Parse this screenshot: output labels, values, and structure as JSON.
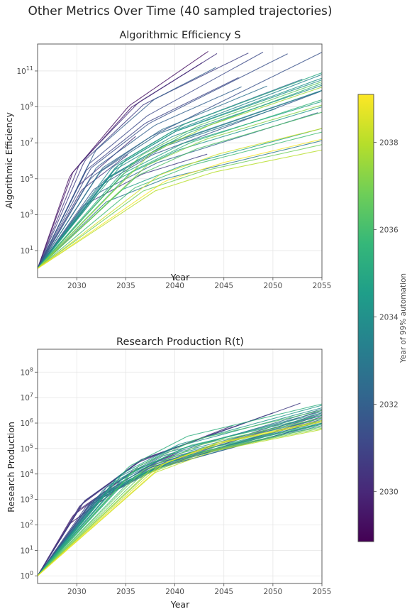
{
  "figure": {
    "title": "Other Metrics Over Time (40 sampled trajectories)"
  },
  "colorbar": {
    "label": "Year of 99% automation",
    "range": [
      2028.85,
      2039.1
    ],
    "ticks": [
      2030,
      2032,
      2034,
      2036,
      2038
    ],
    "colormap": [
      "#440154",
      "#482878",
      "#3e4989",
      "#31688e",
      "#26828e",
      "#1f9e89",
      "#35b779",
      "#6ece58",
      "#b5de2b",
      "#fde725"
    ]
  },
  "chart_data": [
    {
      "type": "line",
      "title": "Algorithmic Efficiency S",
      "xlabel": "Year",
      "ylabel": "Algorithmic Efficiency",
      "xlim": [
        2026,
        2055
      ],
      "ylim_log10": [
        -0.5,
        12.5
      ],
      "yscale": "log",
      "xticks": [
        2030,
        2035,
        2040,
        2045,
        2050,
        2055
      ],
      "yticks_exp": [
        1,
        3,
        5,
        7,
        9,
        11
      ],
      "grid": true,
      "start": {
        "x": 2026,
        "log10_y": 0
      },
      "series": [
        {
          "auto": 2029.3,
          "end": 2043.4,
          "m": [
            0.75,
            0.31,
            0.18
          ],
          "log10_end": 12.09
        },
        {
          "auto": 2029.6,
          "end": 2042.8,
          "m": [
            0.74,
            0.3,
            0.17
          ],
          "log10_end": 11.46
        },
        {
          "auto": 2030.2,
          "end": 2036.0,
          "m": [
            0.73,
            0.31,
            0.2
          ],
          "log10_end": 7.36
        },
        {
          "auto": 2030.3,
          "end": 2044.3,
          "m": [
            0.72,
            0.3,
            0.18
          ],
          "log10_end": 11.97
        },
        {
          "auto": 2030.5,
          "end": 2035.2,
          "m": [
            0.7,
            0.3,
            0.2
          ],
          "log10_end": 6.34
        },
        {
          "auto": 2030.7,
          "end": 2043.3,
          "m": [
            0.67,
            0.26,
            0.15
          ],
          "log10_end": 6.37
        },
        {
          "auto": 2030.8,
          "end": 2047.5,
          "m": [
            0.7,
            0.29,
            0.15
          ],
          "log10_end": 12.0
        },
        {
          "auto": 2031.0,
          "end": 2046.5,
          "m": [
            0.66,
            0.26,
            0.16
          ],
          "log10_end": 10.63
        },
        {
          "auto": 2031.2,
          "end": 2049.0,
          "m": [
            0.67,
            0.27,
            0.18
          ],
          "log10_end": 12.05
        },
        {
          "auto": 2031.4,
          "end": 2051.5,
          "m": [
            0.64,
            0.26,
            0.17
          ],
          "log10_end": 11.96
        },
        {
          "auto": 2031.5,
          "end": 2055.0,
          "m": [
            0.62,
            0.25,
            0.18
          ],
          "log10_end": 12.04
        },
        {
          "auto": 2031.7,
          "end": 2054.8,
          "m": [
            0.6,
            0.25,
            0.16
          ],
          "log10_end": 9.85
        },
        {
          "auto": 2031.9,
          "end": 2044.2,
          "m": [
            0.63,
            0.27,
            0.16
          ],
          "log10_end": 11.2
        },
        {
          "auto": 2032.0,
          "end": 2046.8,
          "m": [
            0.62,
            0.26,
            0.16
          ],
          "log10_end": 10.12
        },
        {
          "auto": 2032.2,
          "end": 2054.6,
          "m": [
            0.56,
            0.23,
            0.14
          ],
          "log10_end": 8.68
        },
        {
          "auto": 2032.4,
          "end": 2053.0,
          "m": [
            0.57,
            0.24,
            0.14
          ],
          "log10_end": 10.54
        },
        {
          "auto": 2032.6,
          "end": 2049.4,
          "m": [
            0.6,
            0.25,
            0.16
          ],
          "log10_end": 10.16
        },
        {
          "auto": 2032.8,
          "end": 2055.0,
          "m": [
            0.5,
            0.22,
            0.13
          ],
          "log10_end": 9.9
        },
        {
          "auto": 2033.0,
          "end": 2055.0,
          "m": [
            0.52,
            0.21,
            0.13
          ],
          "log10_end": 7.12
        },
        {
          "auto": 2033.2,
          "end": 2050.3,
          "m": [
            0.53,
            0.23,
            0.14
          ],
          "log10_end": 8.9
        },
        {
          "auto": 2033.4,
          "end": 2055.0,
          "m": [
            0.52,
            0.23,
            0.14
          ],
          "log10_end": 9.92
        },
        {
          "auto": 2033.6,
          "end": 2055.0,
          "m": [
            0.5,
            0.22,
            0.14
          ],
          "log10_end": 10.8
        },
        {
          "auto": 2033.8,
          "end": 2055.0,
          "m": [
            0.49,
            0.22,
            0.13
          ],
          "log10_end": 10.2
        },
        {
          "auto": 2034.0,
          "end": 2055.0,
          "m": [
            0.48,
            0.22,
            0.13
          ],
          "log10_end": 10.5
        },
        {
          "auto": 2034.2,
          "end": 2055.0,
          "m": [
            0.46,
            0.21,
            0.13
          ],
          "log10_end": 10.6
        },
        {
          "auto": 2034.4,
          "end": 2055.0,
          "m": [
            0.44,
            0.19,
            0.12
          ],
          "log10_end": 9.0
        },
        {
          "auto": 2034.6,
          "end": 2055.0,
          "m": [
            0.42,
            0.18,
            0.12
          ],
          "log10_end": 7.8
        },
        {
          "auto": 2034.8,
          "end": 2055.0,
          "m": [
            0.44,
            0.2,
            0.12
          ],
          "log10_end": 9.3
        },
        {
          "auto": 2035.0,
          "end": 2055.0,
          "m": [
            0.43,
            0.21,
            0.13
          ],
          "log10_end": 10.9
        },
        {
          "auto": 2035.3,
          "end": 2055.0,
          "m": [
            0.4,
            0.19,
            0.13
          ],
          "log10_end": 10.3
        },
        {
          "auto": 2035.6,
          "end": 2055.0,
          "m": [
            0.38,
            0.18,
            0.12
          ],
          "log10_end": 9.4
        },
        {
          "auto": 2035.9,
          "end": 2055.0,
          "m": [
            0.36,
            0.17,
            0.11
          ],
          "log10_end": 7.6
        },
        {
          "auto": 2036.2,
          "end": 2055.0,
          "m": [
            0.35,
            0.17,
            0.11
          ],
          "log10_end": 8.7
        },
        {
          "auto": 2036.5,
          "end": 2055.0,
          "m": [
            0.34,
            0.16,
            0.11
          ],
          "log10_end": 10.4
        },
        {
          "auto": 2036.8,
          "end": 2055.0,
          "m": [
            0.33,
            0.15,
            0.1
          ],
          "log10_end": 6.9
        },
        {
          "auto": 2037.2,
          "end": 2055.0,
          "m": [
            0.32,
            0.15,
            0.1
          ],
          "log10_end": 9.1
        },
        {
          "auto": 2037.6,
          "end": 2055.0,
          "m": [
            0.3,
            0.14,
            0.1
          ],
          "log10_end": 10.1
        },
        {
          "auto": 2038.0,
          "end": 2055.0,
          "m": [
            0.29,
            0.14,
            0.09
          ],
          "log10_end": 6.6
        },
        {
          "auto": 2038.4,
          "end": 2055.0,
          "m": [
            0.28,
            0.13,
            0.09
          ],
          "log10_end": 7.8
        },
        {
          "auto": 2039.0,
          "end": 2055.0,
          "m": [
            0.26,
            0.12,
            0.09
          ],
          "log10_end": 7.2
        }
      ]
    },
    {
      "type": "line",
      "title": "Research Production R(t)",
      "xlabel": "Year",
      "ylabel": "Research Production",
      "xlim": [
        2026,
        2055
      ],
      "ylim_log10": [
        -0.3,
        8.9
      ],
      "yscale": "log",
      "xticks": [
        2030,
        2035,
        2040,
        2045,
        2050,
        2055
      ],
      "yticks_exp": [
        0,
        1,
        2,
        3,
        4,
        5,
        6,
        7,
        8
      ],
      "grid": true,
      "start": {
        "x": 2026,
        "log10_y": 0
      },
      "series": [
        {
          "auto": 2029.3,
          "end": 2036.2,
          "m": [
            0.52,
            0.23,
            0.12
          ],
          "log10_end": 3.84
        },
        {
          "auto": 2029.6,
          "end": 2040.3,
          "m": [
            0.5,
            0.22,
            0.12
          ],
          "log10_end": 4.84
        },
        {
          "auto": 2030.2,
          "end": 2040.0,
          "m": [
            0.48,
            0.21,
            0.11
          ],
          "log10_end": 4.75
        },
        {
          "auto": 2030.3,
          "end": 2045.9,
          "m": [
            0.47,
            0.21,
            0.11
          ],
          "log10_end": 5.9
        },
        {
          "auto": 2030.5,
          "end": 2047.8,
          "m": [
            0.46,
            0.21,
            0.1
          ],
          "log10_end": 6.1
        },
        {
          "auto": 2030.7,
          "end": 2052.8,
          "m": [
            0.45,
            0.2,
            0.1
          ],
          "log10_end": 6.78
        },
        {
          "auto": 2030.8,
          "end": 2050.0,
          "m": [
            0.45,
            0.2,
            0.1
          ],
          "log10_end": 6.4
        },
        {
          "auto": 2031.0,
          "end": 2055.0,
          "m": [
            0.44,
            0.2,
            0.1
          ],
          "log10_end": 6.5
        },
        {
          "auto": 2031.2,
          "end": 2055.0,
          "m": [
            0.44,
            0.19,
            0.1
          ],
          "log10_end": 6.25
        },
        {
          "auto": 2031.4,
          "end": 2055.0,
          "m": [
            0.43,
            0.19,
            0.1
          ],
          "log10_end": 6.4
        },
        {
          "auto": 2031.5,
          "end": 2055.0,
          "m": [
            0.43,
            0.19,
            0.09
          ],
          "log10_end": 6.3
        },
        {
          "auto": 2031.7,
          "end": 2055.0,
          "m": [
            0.42,
            0.18,
            0.09
          ],
          "log10_end": 6.2
        },
        {
          "auto": 2031.9,
          "end": 2055.0,
          "m": [
            0.42,
            0.18,
            0.09
          ],
          "log10_end": 6.0
        },
        {
          "auto": 2032.0,
          "end": 2055.0,
          "m": [
            0.41,
            0.18,
            0.09
          ],
          "log10_end": 6.1
        },
        {
          "auto": 2032.2,
          "end": 2055.0,
          "m": [
            0.41,
            0.18,
            0.09
          ],
          "log10_end": 6.35
        },
        {
          "auto": 2032.4,
          "end": 2055.0,
          "m": [
            0.4,
            0.17,
            0.09
          ],
          "log10_end": 6.15
        },
        {
          "auto": 2032.6,
          "end": 2055.0,
          "m": [
            0.4,
            0.17,
            0.09
          ],
          "log10_end": 6.0
        },
        {
          "auto": 2032.8,
          "end": 2055.0,
          "m": [
            0.4,
            0.17,
            0.09
          ],
          "log10_end": 6.55
        },
        {
          "auto": 2033.0,
          "end": 2055.0,
          "m": [
            0.39,
            0.17,
            0.08
          ],
          "log10_end": 5.95
        },
        {
          "auto": 2033.2,
          "end": 2055.0,
          "m": [
            0.39,
            0.17,
            0.08
          ],
          "log10_end": 6.45
        },
        {
          "auto": 2033.4,
          "end": 2055.0,
          "m": [
            0.38,
            0.16,
            0.08
          ],
          "log10_end": 6.05
        },
        {
          "auto": 2033.6,
          "end": 2055.0,
          "m": [
            0.38,
            0.16,
            0.08
          ],
          "log10_end": 6.3
        },
        {
          "auto": 2033.8,
          "end": 2055.0,
          "m": [
            0.38,
            0.16,
            0.08
          ],
          "log10_end": 5.9
        },
        {
          "auto": 2034.0,
          "end": 2055.0,
          "m": [
            0.37,
            0.16,
            0.08
          ],
          "log10_end": 6.6
        },
        {
          "auto": 2034.2,
          "end": 2055.0,
          "m": [
            0.37,
            0.16,
            0.08
          ],
          "log10_end": 6.2
        },
        {
          "auto": 2034.4,
          "end": 2055.0,
          "m": [
            0.36,
            0.15,
            0.08
          ],
          "log10_end": 6.7
        },
        {
          "auto": 2034.6,
          "end": 2055.0,
          "m": [
            0.36,
            0.15,
            0.08
          ],
          "log10_end": 6.0
        },
        {
          "auto": 2034.8,
          "end": 2055.0,
          "m": [
            0.36,
            0.15,
            0.08
          ],
          "log10_end": 6.4
        },
        {
          "auto": 2035.0,
          "end": 2055.0,
          "m": [
            0.35,
            0.15,
            0.08
          ],
          "log10_end": 6.1
        },
        {
          "auto": 2035.3,
          "end": 2055.0,
          "m": [
            0.35,
            0.15,
            0.07
          ],
          "log10_end": 6.75
        },
        {
          "auto": 2035.6,
          "end": 2055.0,
          "m": [
            0.34,
            0.14,
            0.07
          ],
          "log10_end": 6.3
        },
        {
          "auto": 2035.9,
          "end": 2055.0,
          "m": [
            0.34,
            0.14,
            0.07
          ],
          "log10_end": 5.95
        },
        {
          "auto": 2036.2,
          "end": 2055.0,
          "m": [
            0.33,
            0.14,
            0.07
          ],
          "log10_end": 6.5
        },
        {
          "auto": 2036.5,
          "end": 2055.0,
          "m": [
            0.33,
            0.14,
            0.07
          ],
          "log10_end": 5.85
        },
        {
          "auto": 2036.8,
          "end": 2055.0,
          "m": [
            0.32,
            0.14,
            0.07
          ],
          "log10_end": 6.2
        },
        {
          "auto": 2037.2,
          "end": 2055.0,
          "m": [
            0.32,
            0.13,
            0.07
          ],
          "log10_end": 5.8
        },
        {
          "auto": 2037.6,
          "end": 2055.0,
          "m": [
            0.31,
            0.13,
            0.07
          ],
          "log10_end": 6.05
        },
        {
          "auto": 2038.0,
          "end": 2055.0,
          "m": [
            0.31,
            0.13,
            0.07
          ],
          "log10_end": 5.75
        },
        {
          "auto": 2038.4,
          "end": 2055.0,
          "m": [
            0.3,
            0.13,
            0.07
          ],
          "log10_end": 6.1
        },
        {
          "auto": 2039.0,
          "end": 2055.0,
          "m": [
            0.3,
            0.12,
            0.07
          ],
          "log10_end": 6.05
        }
      ]
    }
  ]
}
